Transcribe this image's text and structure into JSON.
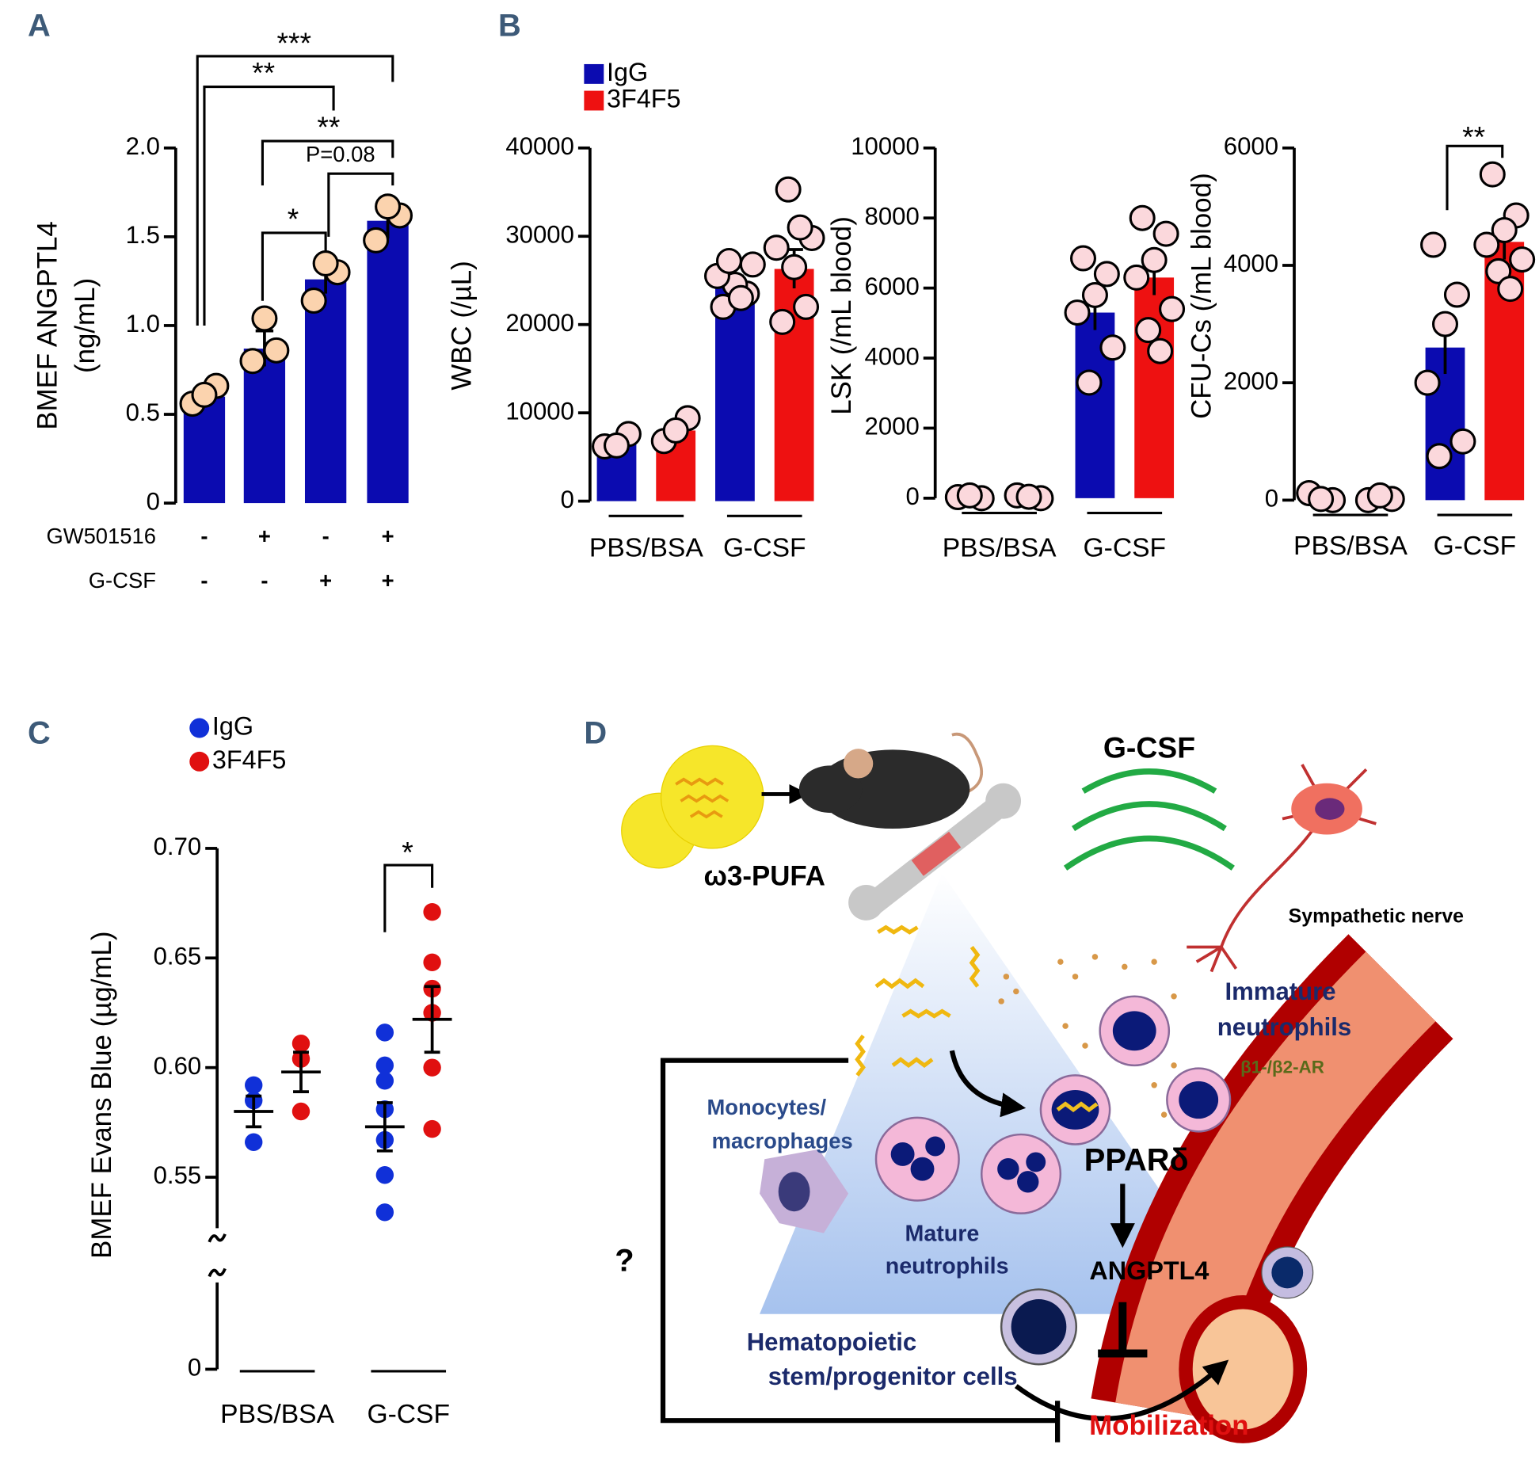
{
  "panel_labels": [
    "A",
    "B",
    "C",
    "D"
  ],
  "chart_data": [
    {
      "type": "bar",
      "ylabel": [
        "BMEF ANGPTL4",
        "(ng/mL)"
      ],
      "ylim": [
        0,
        2
      ],
      "yticks": [
        0,
        0.5,
        {
          "value": 1,
          "label": "1.0"
        },
        1.5,
        {
          "value": 2,
          "label": "2.0"
        }
      ],
      "series": [
        {
          "color": "#0b0bb0",
          "point_color": "#fbd3ae",
          "values": [
            0.6,
            0.87,
            1.26,
            1.59
          ],
          "errors": [
            0.04,
            0.1,
            0.08,
            0.1
          ],
          "points": [
            [
              0.56,
              0.66,
              0.61
            ],
            [
              0.8,
              0.86,
              1.04
            ],
            [
              1.14,
              1.3,
              1.35
            ],
            [
              1.48,
              1.62,
              1.67
            ]
          ]
        }
      ],
      "conditions": [
        {
          "name": "GW501516",
          "values": [
            "-",
            "+",
            "-",
            "+"
          ]
        },
        {
          "name": "G-CSF",
          "values": [
            "-",
            "-",
            "+",
            "+"
          ]
        }
      ],
      "annotations": [
        "***",
        "**",
        "**",
        "P=0.08",
        "*"
      ]
    },
    {
      "type": "bar",
      "ylabel": "WBC (/µL)",
      "ylim": [
        0,
        40000
      ],
      "yticks": [
        0,
        10000,
        20000,
        30000,
        40000
      ],
      "categories": [
        "PBS/BSA",
        "G-CSF"
      ],
      "series": [
        {
          "name": "IgG",
          "color": "#0b0bb0",
          "point_color": "#fbd8dc",
          "values": [
            6600,
            24500
          ],
          "errors": [
            700,
            1000
          ],
          "points": [
            [
              6200,
              7600,
              6300
            ],
            [
              22000,
              23500,
              24500,
              25500,
              26800,
              27200,
              23000
            ]
          ]
        },
        {
          "name": "3F4F5",
          "color": "#ee1111",
          "point_color": "#fbd8dc",
          "values": [
            8000,
            26300
          ],
          "errors": [
            1000,
            2200
          ],
          "points": [
            [
              6800,
              9400,
              8000
            ],
            [
              20300,
              22000,
              26500,
              28700,
              29800,
              35300,
              31000
            ]
          ]
        }
      ]
    },
    {
      "type": "bar",
      "ylabel": "LSK (/mL blood)",
      "ylim": [
        0,
        10000
      ],
      "yticks": [
        0,
        2000,
        4000,
        6000,
        8000,
        10000
      ],
      "categories": [
        "PBS/BSA",
        "G-CSF"
      ],
      "series": [
        {
          "color": "#0b0bb0",
          "point_color": "#fbd8dc",
          "values": [
            50,
            5300
          ],
          "errors": [
            30,
            500
          ],
          "points": [
            [
              30,
              0,
              80
            ],
            [
              6850,
              6400,
              5800,
              5300,
              4300,
              3300
            ]
          ]
        },
        {
          "color": "#ee1111",
          "point_color": "#fbd8dc",
          "values": [
            50,
            6300
          ],
          "errors": [
            30,
            500
          ],
          "points": [
            [
              80,
              0,
              40
            ],
            [
              8000,
              7550,
              6800,
              6300,
              5400,
              4800,
              4200
            ]
          ]
        }
      ]
    },
    {
      "type": "bar",
      "ylabel": "CFU-Cs (/mL blood)",
      "ylim": [
        0,
        6000
      ],
      "yticks": [
        0,
        2000,
        4000,
        6000
      ],
      "categories": [
        "PBS/BSA",
        "G-CSF"
      ],
      "series": [
        {
          "color": "#0b0bb0",
          "point_color": "#fbd8dc",
          "values": [
            40,
            2600
          ],
          "errors": [
            20,
            450
          ],
          "points": [
            [
              120,
              0,
              20
            ],
            [
              4350,
              3500,
              3000,
              2000,
              1000,
              750
            ]
          ]
        },
        {
          "color": "#ee1111",
          "point_color": "#fbd8dc",
          "values": [
            30,
            4400
          ],
          "errors": [
            20,
            300
          ],
          "points": [
            [
              0,
              20,
              80
            ],
            [
              5550,
              4850,
              4600,
              4350,
              4100,
              3900,
              3600
            ]
          ]
        }
      ],
      "annotations": [
        "**"
      ]
    },
    {
      "type": "dot",
      "ylabel": "BMEF Evans Blue (µg/mL)",
      "ylim": [
        0.52,
        0.7
      ],
      "axis_break": true,
      "yticks": [
        0,
        0.55,
        {
          "value": 0.6,
          "label": "0.60"
        },
        0.65,
        {
          "value": 0.7,
          "label": "0.70"
        }
      ],
      "categories": [
        "PBS/BSA",
        "G-CSF"
      ],
      "series": [
        {
          "name": "IgG",
          "color": "#1030d8",
          "values": [
            0.58,
            0.573
          ],
          "errors": [
            0.007,
            0.011
          ],
          "points": [
            [
              0.592,
              0.585,
              0.566
            ],
            [
              0.616,
              0.601,
              0.594,
              0.581,
              0.567,
              0.551,
              0.534
            ]
          ]
        },
        {
          "name": "3F4F5",
          "color": "#e01010",
          "values": [
            0.598,
            0.622
          ],
          "errors": [
            0.009,
            0.015
          ],
          "points": [
            [
              0.611,
              0.604,
              0.58
            ],
            [
              0.671,
              0.648,
              0.636,
              0.625,
              0.6,
              0.572
            ]
          ]
        }
      ],
      "annotations": [
        "*"
      ]
    }
  ],
  "diagram": {
    "g_csf": "G-CSF",
    "pufa": "ω3-PUFA",
    "nerve": "Sympathetic nerve",
    "immature_1": "Immature",
    "immature_2": "neutrophils",
    "receptor": "β1-/β2-AR",
    "mono_1": "Monocytes/",
    "mono_2": "macrophages",
    "ppar": "PPARδ",
    "angptl4": "ANGPTL4",
    "mature_1": "Mature",
    "mature_2": "neutrophils",
    "hspc_1": "Hematopoietic",
    "hspc_2": "stem/progenitor cells",
    "mobilization": "Mobilization",
    "question": "?"
  }
}
